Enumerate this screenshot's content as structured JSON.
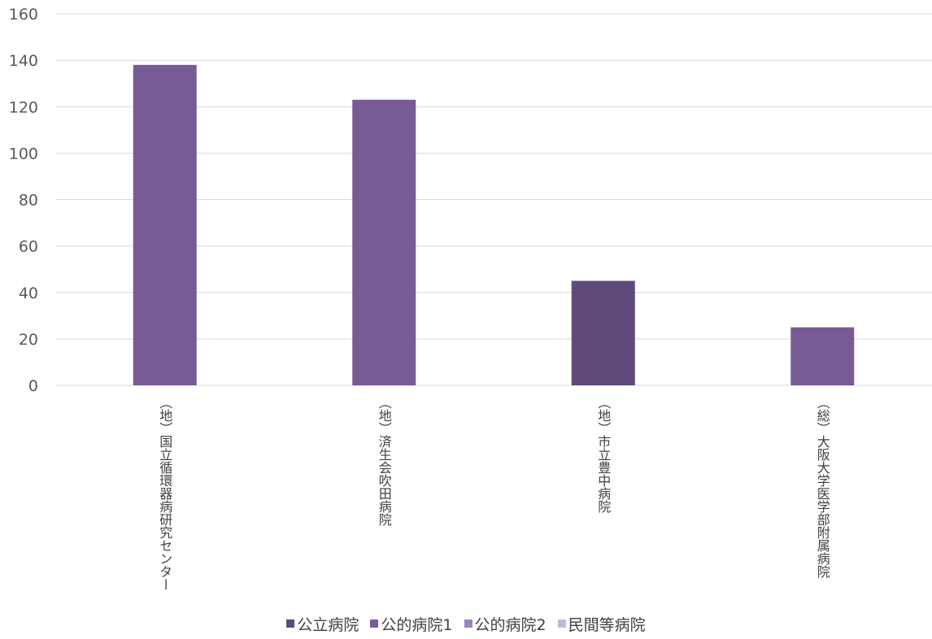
{
  "chart_data": {
    "type": "bar",
    "categories": [
      "（地）国立循環器病研究センター",
      "（地）済生会吹田病院",
      "（地）市立豊中病院",
      "（総）大阪大学医学部附属病院"
    ],
    "category_series": [
      "公的病院1",
      "公的病院1",
      "公立病院",
      "公的病院1"
    ],
    "values": [
      138,
      123,
      45,
      25
    ],
    "ylim": [
      0,
      160
    ],
    "yticks": [
      0,
      20,
      40,
      60,
      80,
      100,
      120,
      140,
      160
    ],
    "grid": true,
    "legend_position": "bottom",
    "legend": [
      {
        "name": "公立病院",
        "color": "#604a7b"
      },
      {
        "name": "公的病院1",
        "color": "#775b95"
      },
      {
        "name": "公的病院2",
        "color": "#9b84b8"
      },
      {
        "name": "民間等病院",
        "color": "#c4b9d4"
      }
    ],
    "title": "",
    "xlabel": "",
    "ylabel": ""
  }
}
